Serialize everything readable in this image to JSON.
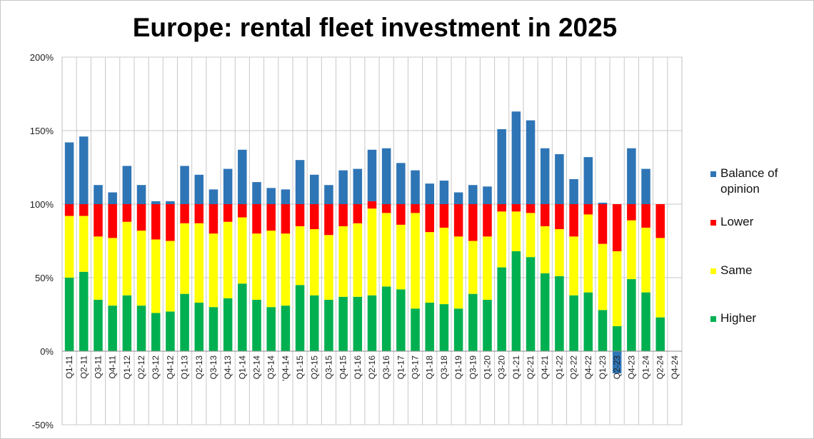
{
  "chart_data": {
    "type": "bar",
    "stacked": true,
    "title": "Europe: rental fleet investment in 2025",
    "xlabel": "",
    "ylabel": "",
    "ylim": [
      -50,
      200
    ],
    "yticks": [
      -50,
      0,
      50,
      100,
      150,
      200
    ],
    "ytick_labels": [
      "-50%",
      "0%",
      "50%",
      "100%",
      "150%",
      "200%"
    ],
    "grid": true,
    "legend_position": "right",
    "categories": [
      "Q1-11",
      "Q2-11",
      "Q3-11",
      "Q4-11",
      "Q1-12",
      "Q2-12",
      "Q3-12",
      "Q4-12",
      "Q1-13",
      "Q2-13",
      "Q3-13",
      "Q4-13",
      "Q1-14",
      "Q2-14",
      "Q3-14",
      "'Q4-14",
      "Q1-15",
      "Q2-15",
      "Q3-15",
      "Q4-15",
      "Q1-16",
      "Q2-16",
      "Q3-16",
      "Q1-17",
      "Q3-17",
      "Q1-18",
      "Q3-18",
      "Q1-19",
      "Q3-19",
      "Q1-20",
      "Q3-20",
      "Q1-21",
      "Q2-21",
      "Q4-21",
      "Q1-22",
      "Q2-22",
      "Q4-22",
      "Q1-23",
      "Q2-23",
      "Q4-23",
      "Q1-24",
      "Q2-24",
      "Q4-24"
    ],
    "series": [
      {
        "name": "Higher",
        "color": "#00b050",
        "values": [
          50,
          54,
          35,
          31,
          38,
          31,
          26,
          27,
          39,
          33,
          30,
          36,
          46,
          35,
          30,
          31,
          45,
          38,
          35,
          37,
          37,
          38,
          44,
          42,
          29,
          33,
          32,
          29,
          39,
          35,
          57,
          68,
          64,
          53,
          51,
          38,
          40,
          28,
          17,
          49,
          40,
          23,
          0
        ]
      },
      {
        "name": "Same",
        "color": "#ffff00",
        "values": [
          42,
          38,
          43,
          46,
          50,
          51,
          50,
          48,
          48,
          54,
          50,
          52,
          45,
          45,
          52,
          49,
          40,
          45,
          44,
          48,
          50,
          59,
          50,
          44,
          65,
          48,
          52,
          49,
          36,
          43,
          38,
          27,
          30,
          32,
          32,
          40,
          53,
          45,
          51,
          40,
          44,
          54,
          0
        ]
      },
      {
        "name": "Lower",
        "color": "#ff0000",
        "values": [
          8,
          8,
          22,
          23,
          12,
          18,
          24,
          25,
          13,
          13,
          20,
          12,
          9,
          20,
          18,
          20,
          15,
          17,
          21,
          15,
          13,
          5,
          6,
          14,
          6,
          19,
          16,
          22,
          25,
          22,
          5,
          5,
          6,
          15,
          17,
          22,
          7,
          27,
          32,
          11,
          16,
          23,
          0
        ]
      },
      {
        "name": "Balance of opinion",
        "color": "#2e75b6",
        "values": [
          42,
          46,
          13,
          8,
          26,
          13,
          2,
          2,
          26,
          20,
          10,
          24,
          37,
          15,
          11,
          10,
          30,
          20,
          13,
          23,
          24,
          35,
          38,
          28,
          23,
          14,
          16,
          8,
          13,
          12,
          51,
          63,
          57,
          38,
          34,
          17,
          32,
          1,
          -15,
          38,
          24,
          0,
          0
        ]
      }
    ],
    "legend": [
      "Balance of opinion",
      "Lower",
      "Same",
      "Higher"
    ]
  }
}
